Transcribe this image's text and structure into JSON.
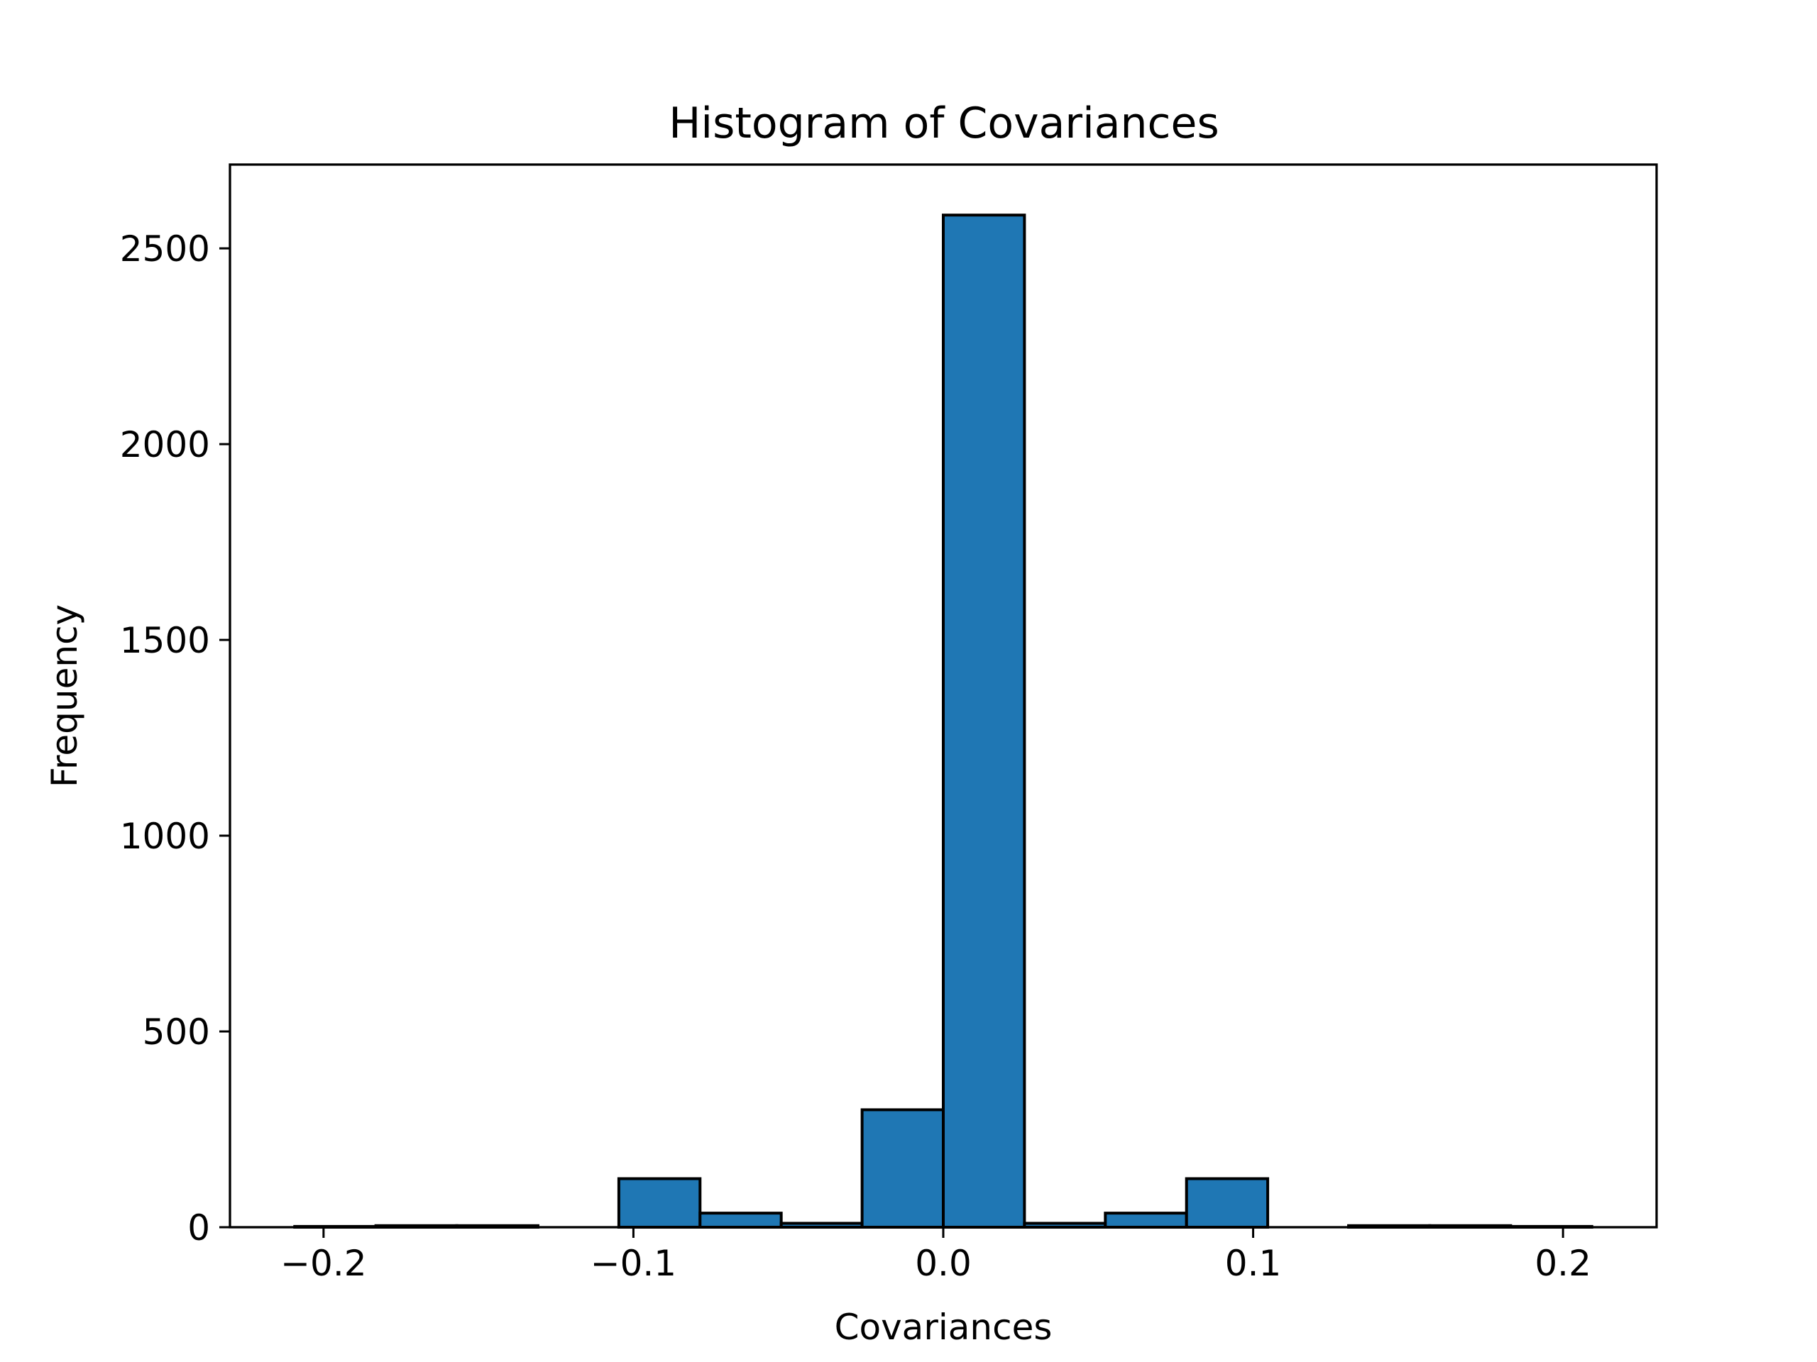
{
  "chart_data": {
    "type": "bar",
    "title": "Histogram of Covariances",
    "xlabel": "Covariances",
    "ylabel": "Frequency",
    "xlim": [
      -0.2302,
      0.2302
    ],
    "ylim": [
      0,
      2714
    ],
    "xticks": [
      -0.2,
      -0.1,
      0.0,
      0.1,
      0.2
    ],
    "xtick_labels": [
      "−0.2",
      "−0.1",
      "0.0",
      "0.1",
      "0.2"
    ],
    "yticks": [
      0,
      500,
      1000,
      1500,
      2000,
      2500
    ],
    "ytick_labels": [
      "0",
      "500",
      "1000",
      "1500",
      "2000",
      "2500"
    ],
    "bin_edges": [
      -0.2093,
      -0.1831,
      -0.157,
      -0.1308,
      -0.1047,
      -0.0785,
      -0.0523,
      -0.0262,
      0.0,
      0.0262,
      0.0523,
      0.0785,
      0.1047,
      0.1308,
      0.157,
      0.1831,
      0.2093
    ],
    "values": [
      2,
      4,
      4,
      0,
      124,
      36,
      10,
      300,
      2585,
      10,
      36,
      124,
      0,
      4,
      4,
      2
    ],
    "bar_color": "#1f77b4",
    "edge_color": "#000000",
    "grid": false
  }
}
